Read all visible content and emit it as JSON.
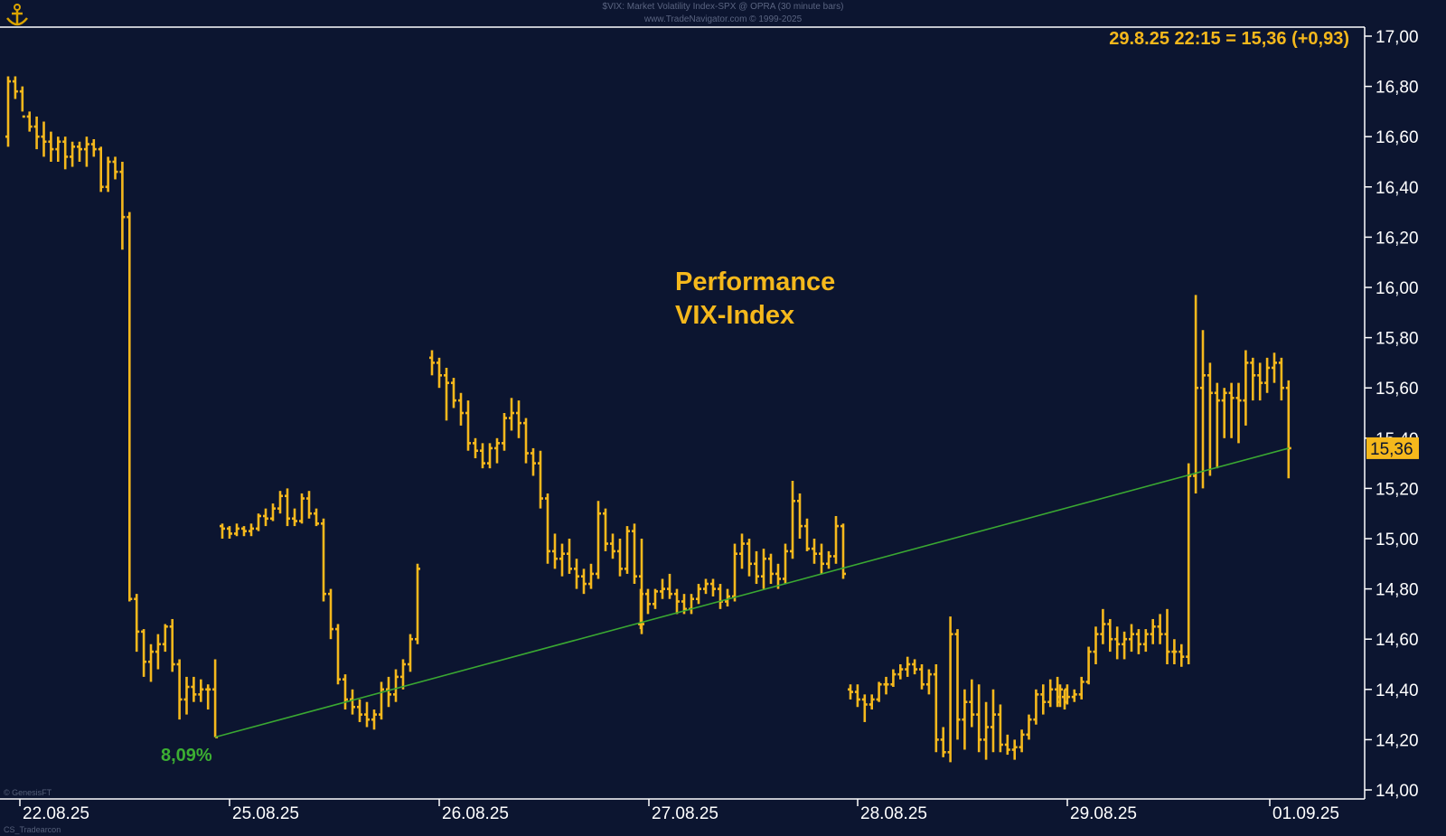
{
  "header": {
    "line1": "$VIX:  Market Volatility Index-SPX @ OPRA  (30 minute bars)",
    "line2": "www.TradeNavigator.com © 1999-2025"
  },
  "footer": {
    "copyright": "© GenesisFT",
    "note": "CS_Tradearcon"
  },
  "colors": {
    "background": "#0c1530",
    "bars": "#f5b81c",
    "trendline": "#3aa832",
    "axis": "#ffffff",
    "annotation": "#f5b81c",
    "percent": "#3cae32"
  },
  "icons": {
    "logo": "anchor-logo-icon"
  },
  "chart_data": {
    "type": "ohlc-bar",
    "title": "Performance\nVIX-Index",
    "annotation_text_line1": "Performance",
    "annotation_text_line2": "VIX-Index",
    "ylim": [
      14.0,
      17.0
    ],
    "y_ticks": [
      "17,00",
      "16,80",
      "16,60",
      "16,40",
      "16,20",
      "16,00",
      "15,80",
      "15,60",
      "15,40",
      "15,20",
      "15,00",
      "14,80",
      "14,60",
      "14,40",
      "14,20",
      "14,00"
    ],
    "x_ticks": [
      "22.08.25",
      "25.08.25",
      "26.08.25",
      "27.08.25",
      "28.08.25",
      "29.08.25",
      "01.09.25"
    ],
    "last_value_box": "15,36",
    "last_quote": "29.8.25 22:15 = 15,36 (+0,93)",
    "performance_label": "8,09%",
    "trendline": {
      "from": {
        "date": "22.08.25 22:00",
        "value": 14.21
      },
      "to": {
        "date": "29.08.25 22:00",
        "value": 15.36
      }
    },
    "days": [
      {
        "date": "22.08.25",
        "bars": [
          [
            16.6,
            16.84,
            16.56,
            16.82
          ],
          [
            16.82,
            16.84,
            16.75,
            16.78
          ],
          [
            16.78,
            16.8,
            16.7,
            16.68
          ],
          [
            16.68,
            16.7,
            16.62,
            16.64
          ],
          [
            16.64,
            16.68,
            16.55,
            16.6
          ],
          [
            16.6,
            16.66,
            16.52,
            16.58
          ],
          [
            16.58,
            16.62,
            16.5,
            16.55
          ],
          [
            16.55,
            16.6,
            16.5,
            16.58
          ],
          [
            16.58,
            16.6,
            16.47,
            16.52
          ],
          [
            16.52,
            16.58,
            16.48,
            16.56
          ],
          [
            16.56,
            16.58,
            16.5,
            16.55
          ],
          [
            16.55,
            16.6,
            16.48,
            16.57
          ],
          [
            16.57,
            16.59,
            16.52,
            16.55
          ],
          [
            16.55,
            16.56,
            16.38,
            16.4
          ],
          [
            16.4,
            16.52,
            16.38,
            16.5
          ],
          [
            16.5,
            16.52,
            16.43,
            16.46
          ],
          [
            16.46,
            16.5,
            16.15,
            16.28
          ],
          [
            16.28,
            16.3,
            14.75,
            14.76
          ],
          [
            14.76,
            14.78,
            14.55,
            14.63
          ],
          [
            14.63,
            14.64,
            14.45,
            14.51
          ],
          [
            14.51,
            14.58,
            14.43,
            14.55
          ],
          [
            14.55,
            14.62,
            14.48,
            14.58
          ],
          [
            14.58,
            14.66,
            14.55,
            14.65
          ],
          [
            14.65,
            14.68,
            14.47,
            14.5
          ],
          [
            14.5,
            14.52,
            14.28,
            14.36
          ],
          [
            14.36,
            14.45,
            14.3,
            14.41
          ],
          [
            14.41,
            14.45,
            14.35,
            14.38
          ],
          [
            14.38,
            14.44,
            14.35,
            14.4
          ],
          [
            14.4,
            14.42,
            14.32,
            14.4
          ],
          [
            14.4,
            14.52,
            14.21,
            14.21
          ]
        ]
      },
      {
        "date": "25.08.25",
        "bars": [
          [
            15.05,
            15.06,
            15.0,
            15.04
          ],
          [
            15.04,
            15.05,
            15.0,
            15.02
          ],
          [
            15.02,
            15.06,
            15.01,
            15.04
          ],
          [
            15.04,
            15.05,
            15.01,
            15.03
          ],
          [
            15.03,
            15.06,
            15.01,
            15.04
          ],
          [
            15.04,
            15.1,
            15.03,
            15.09
          ],
          [
            15.09,
            15.12,
            15.05,
            15.08
          ],
          [
            15.08,
            15.14,
            15.07,
            15.12
          ],
          [
            15.12,
            15.19,
            15.1,
            15.17
          ],
          [
            15.17,
            15.2,
            15.05,
            15.08
          ],
          [
            15.08,
            15.12,
            15.05,
            15.07
          ],
          [
            15.07,
            15.18,
            15.06,
            15.16
          ],
          [
            15.16,
            15.19,
            15.08,
            15.1
          ],
          [
            15.1,
            15.12,
            15.05,
            15.06
          ],
          [
            15.06,
            15.08,
            14.75,
            14.78
          ],
          [
            14.78,
            14.8,
            14.6,
            14.64
          ],
          [
            14.64,
            14.66,
            14.42,
            14.44
          ],
          [
            14.44,
            14.46,
            14.32,
            14.36
          ],
          [
            14.36,
            14.4,
            14.3,
            14.33
          ],
          [
            14.33,
            14.36,
            14.27,
            14.3
          ],
          [
            14.3,
            14.35,
            14.25,
            14.28
          ],
          [
            14.28,
            14.32,
            14.24,
            14.3
          ],
          [
            14.3,
            14.43,
            14.28,
            14.4
          ],
          [
            14.4,
            14.45,
            14.33,
            14.38
          ],
          [
            14.38,
            14.48,
            14.35,
            14.45
          ],
          [
            14.45,
            14.52,
            14.4,
            14.5
          ],
          [
            14.5,
            14.62,
            14.47,
            14.6
          ],
          [
            14.6,
            14.9,
            14.58,
            14.88
          ]
        ]
      },
      {
        "date": "26.08.25",
        "bars": [
          [
            15.72,
            15.75,
            15.65,
            15.7
          ],
          [
            15.7,
            15.72,
            15.6,
            15.65
          ],
          [
            15.65,
            15.68,
            15.47,
            15.62
          ],
          [
            15.62,
            15.64,
            15.52,
            15.55
          ],
          [
            15.55,
            15.58,
            15.45,
            15.5
          ],
          [
            15.5,
            15.55,
            15.35,
            15.38
          ],
          [
            15.38,
            15.4,
            15.32,
            15.35
          ],
          [
            15.35,
            15.38,
            15.28,
            15.3
          ],
          [
            15.3,
            15.38,
            15.28,
            15.36
          ],
          [
            15.36,
            15.4,
            15.3,
            15.38
          ],
          [
            15.38,
            15.5,
            15.35,
            15.48
          ],
          [
            15.48,
            15.56,
            15.43,
            15.5
          ],
          [
            15.5,
            15.55,
            15.4,
            15.46
          ],
          [
            15.46,
            15.48,
            15.3,
            15.34
          ],
          [
            15.34,
            15.36,
            15.25,
            15.3
          ],
          [
            15.3,
            15.35,
            15.12,
            15.16
          ],
          [
            15.16,
            15.18,
            14.9,
            14.95
          ],
          [
            14.95,
            15.02,
            14.88,
            14.92
          ],
          [
            14.92,
            14.98,
            14.85,
            14.94
          ],
          [
            14.94,
            15.0,
            14.86,
            14.88
          ],
          [
            14.88,
            14.92,
            14.8,
            14.85
          ],
          [
            14.85,
            14.88,
            14.78,
            14.82
          ],
          [
            14.82,
            14.9,
            14.8,
            14.86
          ],
          [
            14.86,
            15.15,
            14.84,
            15.1
          ],
          [
            15.1,
            15.12,
            14.95,
            14.98
          ],
          [
            14.98,
            15.02,
            14.92,
            14.95
          ],
          [
            14.95,
            15.0,
            14.85,
            14.88
          ],
          [
            14.88,
            15.05,
            14.86,
            15.03
          ],
          [
            15.03,
            15.06,
            14.82,
            14.85
          ],
          [
            14.85,
            15.0,
            14.62,
            14.66
          ]
        ]
      },
      {
        "date": "27.08.25",
        "bars": [
          [
            14.66,
            14.8,
            14.64,
            14.78
          ],
          [
            14.78,
            14.8,
            14.7,
            14.74
          ],
          [
            14.74,
            14.8,
            14.72,
            14.79
          ],
          [
            14.79,
            14.84,
            14.76,
            14.8
          ],
          [
            14.8,
            14.86,
            14.76,
            14.78
          ],
          [
            14.78,
            14.8,
            14.7,
            14.75
          ],
          [
            14.75,
            14.78,
            14.7,
            14.72
          ],
          [
            14.72,
            14.78,
            14.7,
            14.76
          ],
          [
            14.76,
            14.82,
            14.74,
            14.8
          ],
          [
            14.8,
            14.84,
            14.78,
            14.82
          ],
          [
            14.82,
            14.84,
            14.77,
            14.8
          ],
          [
            14.8,
            14.82,
            14.72,
            14.75
          ],
          [
            14.75,
            14.8,
            14.73,
            14.77
          ],
          [
            14.77,
            14.98,
            14.75,
            14.94
          ],
          [
            14.94,
            15.02,
            14.88,
            14.98
          ],
          [
            14.98,
            15.0,
            14.85,
            14.9
          ],
          [
            14.9,
            14.95,
            14.82,
            14.85
          ],
          [
            14.85,
            14.96,
            14.8,
            14.92
          ],
          [
            14.92,
            14.94,
            14.82,
            14.86
          ],
          [
            14.86,
            14.9,
            14.8,
            14.84
          ],
          [
            14.84,
            14.98,
            14.82,
            14.95
          ],
          [
            14.95,
            15.23,
            14.92,
            15.15
          ],
          [
            15.15,
            15.18,
            15.0,
            15.05
          ],
          [
            15.05,
            15.08,
            14.95,
            14.96
          ],
          [
            14.96,
            15.0,
            14.9,
            14.94
          ],
          [
            14.94,
            14.98,
            14.86,
            14.9
          ],
          [
            14.9,
            14.95,
            14.88,
            14.93
          ],
          [
            14.93,
            15.09,
            14.9,
            15.05
          ],
          [
            15.05,
            15.06,
            14.84,
            14.86
          ]
        ]
      },
      {
        "date": "28.08.25",
        "bars": [
          [
            14.4,
            14.42,
            14.36,
            14.39
          ],
          [
            14.39,
            14.42,
            14.33,
            14.36
          ],
          [
            14.36,
            14.38,
            14.27,
            14.34
          ],
          [
            14.34,
            14.38,
            14.32,
            14.36
          ],
          [
            14.36,
            14.43,
            14.35,
            14.42
          ],
          [
            14.42,
            14.45,
            14.38,
            14.42
          ],
          [
            14.42,
            14.48,
            14.41,
            14.46
          ],
          [
            14.46,
            14.5,
            14.44,
            14.48
          ],
          [
            14.48,
            14.53,
            14.45,
            14.5
          ],
          [
            14.5,
            14.52,
            14.46,
            14.48
          ],
          [
            14.48,
            14.5,
            14.4,
            14.42
          ],
          [
            14.42,
            14.48,
            14.38,
            14.46
          ],
          [
            14.46,
            14.5,
            14.15,
            14.2
          ],
          [
            14.2,
            14.25,
            14.13,
            14.15
          ],
          [
            14.15,
            14.69,
            14.11,
            14.62
          ],
          [
            14.62,
            14.64,
            14.2,
            14.28
          ],
          [
            14.28,
            14.4,
            14.16,
            14.35
          ],
          [
            14.35,
            14.44,
            14.25,
            14.3
          ],
          [
            14.3,
            14.42,
            14.15,
            14.2
          ],
          [
            14.2,
            14.35,
            14.12,
            14.25
          ],
          [
            14.25,
            14.4,
            14.15,
            14.3
          ],
          [
            14.3,
            14.34,
            14.15,
            14.18
          ],
          [
            14.18,
            14.22,
            14.14,
            14.16
          ],
          [
            14.16,
            14.2,
            14.12,
            14.17
          ],
          [
            14.17,
            14.24,
            14.15,
            14.22
          ],
          [
            14.22,
            14.3,
            14.2,
            14.28
          ],
          [
            14.28,
            14.4,
            14.26,
            14.38
          ],
          [
            14.38,
            14.42,
            14.3,
            14.35
          ],
          [
            14.35,
            14.44,
            14.33,
            14.4
          ],
          [
            14.4,
            14.45,
            14.33,
            14.37
          ],
          [
            14.37,
            14.4,
            14.32,
            14.35
          ]
        ]
      },
      {
        "date": "29.08.25",
        "bars": [
          [
            14.35,
            14.42,
            14.33,
            14.4
          ],
          [
            14.4,
            14.42,
            14.34,
            14.37
          ],
          [
            14.37,
            14.4,
            14.35,
            14.38
          ],
          [
            14.38,
            14.45,
            14.36,
            14.43
          ],
          [
            14.43,
            14.57,
            14.42,
            14.55
          ],
          [
            14.55,
            14.65,
            14.5,
            14.62
          ],
          [
            14.62,
            14.72,
            14.58,
            14.66
          ],
          [
            14.66,
            14.68,
            14.55,
            14.6
          ],
          [
            14.6,
            14.65,
            14.52,
            14.58
          ],
          [
            14.58,
            14.63,
            14.52,
            14.6
          ],
          [
            14.6,
            14.66,
            14.55,
            14.62
          ],
          [
            14.62,
            14.64,
            14.54,
            14.58
          ],
          [
            14.58,
            14.64,
            14.55,
            14.62
          ],
          [
            14.62,
            14.68,
            14.58,
            14.65
          ],
          [
            14.65,
            14.7,
            14.58,
            14.62
          ],
          [
            14.62,
            14.72,
            14.5,
            14.55
          ],
          [
            14.55,
            14.6,
            14.5,
            14.55
          ],
          [
            14.55,
            14.58,
            14.49,
            14.53
          ],
          [
            14.53,
            15.3,
            14.5,
            15.25
          ],
          [
            15.25,
            15.97,
            15.18,
            15.6
          ],
          [
            15.6,
            15.83,
            15.2,
            15.65
          ],
          [
            15.65,
            15.7,
            15.25,
            15.58
          ],
          [
            15.58,
            15.62,
            15.28,
            15.55
          ],
          [
            15.55,
            15.6,
            15.4,
            15.58
          ],
          [
            15.58,
            15.62,
            15.4,
            15.56
          ],
          [
            15.56,
            15.62,
            15.38,
            15.55
          ],
          [
            15.55,
            15.75,
            15.45,
            15.7
          ],
          [
            15.7,
            15.72,
            15.55,
            15.65
          ],
          [
            15.65,
            15.7,
            15.55,
            15.62
          ],
          [
            15.62,
            15.72,
            15.58,
            15.68
          ],
          [
            15.68,
            15.74,
            15.62,
            15.7
          ],
          [
            15.7,
            15.72,
            15.55,
            15.6
          ],
          [
            15.6,
            15.63,
            15.24,
            15.36
          ]
        ]
      }
    ]
  }
}
